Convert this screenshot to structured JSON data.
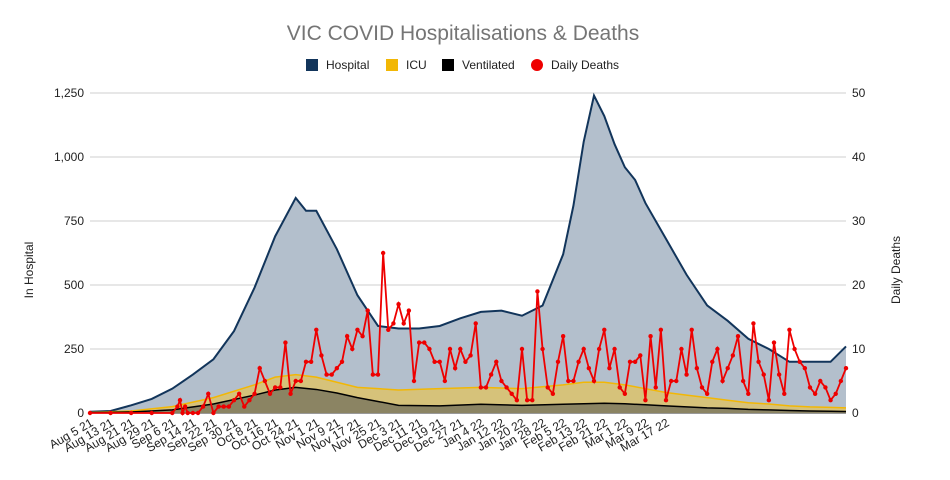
{
  "chart_data": {
    "type": "area",
    "title": "VIC COVID Hospitalisations & Deaths",
    "ylabel_left": "In Hospital",
    "ylabel_right": "Daily Deaths",
    "ylim_left": [
      0,
      1250
    ],
    "ylim_right": [
      0,
      50
    ],
    "yticks_left": [
      "0",
      "250",
      "500",
      "750",
      "1,000",
      "1,250"
    ],
    "yticks_right": [
      "0",
      "10",
      "20",
      "30",
      "40",
      "50"
    ],
    "grid": true,
    "legend_position": "top",
    "x_tick_labels": [
      "Aug 5 21",
      "Aug 13 21",
      "Aug 21 21",
      "Aug 29 21",
      "Sep 6 21",
      "Sep 14 21",
      "Sep 22 21",
      "Sep 30 21",
      "Oct 8 21",
      "Oct 16 21",
      "Oct 24 21",
      "Nov 1 21",
      "Nov 9 21",
      "Nov 17 21",
      "Nov 25 21",
      "Dec 3 21",
      "Dec 11 21",
      "Dec 19 21",
      "Dec 27 21",
      "Jan 4 22",
      "Jan 12 22",
      "Jan 20 22",
      "Jan 28 22",
      "Feb 5 22",
      "Feb 13 22",
      "Feb 21 22",
      "Mar 1 22",
      "Mar 9 22",
      "Mar 17 22"
    ],
    "series": [
      {
        "name": "Hospital",
        "color": "#12355b",
        "fill": "#b3bfcc",
        "axis": "left",
        "points": [
          [
            0,
            5
          ],
          [
            8,
            8
          ],
          [
            16,
            30
          ],
          [
            24,
            55
          ],
          [
            32,
            95
          ],
          [
            40,
            150
          ],
          [
            48,
            210
          ],
          [
            56,
            320
          ],
          [
            64,
            490
          ],
          [
            72,
            690
          ],
          [
            80,
            840
          ],
          [
            84,
            790
          ],
          [
            88,
            790
          ],
          [
            96,
            640
          ],
          [
            104,
            460
          ],
          [
            112,
            340
          ],
          [
            120,
            330
          ],
          [
            128,
            330
          ],
          [
            136,
            340
          ],
          [
            144,
            370
          ],
          [
            152,
            395
          ],
          [
            160,
            400
          ],
          [
            168,
            380
          ],
          [
            176,
            420
          ],
          [
            184,
            620
          ],
          [
            188,
            810
          ],
          [
            192,
            1060
          ],
          [
            196,
            1240
          ],
          [
            200,
            1160
          ],
          [
            204,
            1050
          ],
          [
            208,
            960
          ],
          [
            212,
            910
          ],
          [
            216,
            820
          ],
          [
            224,
            680
          ],
          [
            232,
            540
          ],
          [
            240,
            420
          ],
          [
            248,
            360
          ],
          [
            256,
            290
          ],
          [
            264,
            250
          ],
          [
            272,
            200
          ],
          [
            280,
            200
          ],
          [
            288,
            200
          ],
          [
            294,
            260
          ]
        ]
      },
      {
        "name": "ICU",
        "color": "#f2b705",
        "fill": "#d6c27a",
        "axis": "left",
        "points": [
          [
            0,
            2
          ],
          [
            16,
            8
          ],
          [
            32,
            25
          ],
          [
            48,
            60
          ],
          [
            64,
            110
          ],
          [
            72,
            140
          ],
          [
            80,
            150
          ],
          [
            88,
            140
          ],
          [
            96,
            120
          ],
          [
            104,
            100
          ],
          [
            112,
            95
          ],
          [
            120,
            90
          ],
          [
            136,
            95
          ],
          [
            152,
            100
          ],
          [
            168,
            95
          ],
          [
            184,
            110
          ],
          [
            192,
            120
          ],
          [
            200,
            120
          ],
          [
            208,
            110
          ],
          [
            216,
            95
          ],
          [
            224,
            80
          ],
          [
            232,
            70
          ],
          [
            240,
            60
          ],
          [
            248,
            50
          ],
          [
            256,
            40
          ],
          [
            264,
            35
          ],
          [
            272,
            28
          ],
          [
            280,
            24
          ],
          [
            288,
            22
          ],
          [
            294,
            20
          ]
        ]
      },
      {
        "name": "Ventilated",
        "color": "#000000",
        "fill": "#8b8463",
        "axis": "left",
        "points": [
          [
            0,
            1
          ],
          [
            16,
            4
          ],
          [
            32,
            12
          ],
          [
            48,
            35
          ],
          [
            64,
            70
          ],
          [
            72,
            90
          ],
          [
            80,
            100
          ],
          [
            88,
            92
          ],
          [
            96,
            78
          ],
          [
            104,
            60
          ],
          [
            112,
            45
          ],
          [
            120,
            30
          ],
          [
            136,
            28
          ],
          [
            152,
            34
          ],
          [
            168,
            30
          ],
          [
            184,
            34
          ],
          [
            192,
            36
          ],
          [
            200,
            38
          ],
          [
            208,
            36
          ],
          [
            216,
            32
          ],
          [
            224,
            28
          ],
          [
            232,
            24
          ],
          [
            240,
            20
          ],
          [
            248,
            18
          ],
          [
            256,
            14
          ],
          [
            264,
            12
          ],
          [
            272,
            10
          ],
          [
            280,
            8
          ],
          [
            288,
            7
          ],
          [
            294,
            6
          ]
        ]
      },
      {
        "name": "Daily Deaths",
        "color": "#ee0000",
        "fill": "none",
        "axis": "right",
        "points": [
          [
            0,
            0
          ],
          [
            8,
            0
          ],
          [
            16,
            0
          ],
          [
            24,
            0
          ],
          [
            32,
            0
          ],
          [
            34,
            1
          ],
          [
            35,
            2
          ],
          [
            36,
            0
          ],
          [
            37,
            1
          ],
          [
            38,
            0
          ],
          [
            40,
            0
          ],
          [
            42,
            0
          ],
          [
            44,
            1
          ],
          [
            46,
            3
          ],
          [
            48,
            0
          ],
          [
            50,
            1
          ],
          [
            52,
            1
          ],
          [
            54,
            1
          ],
          [
            56,
            2
          ],
          [
            58,
            3
          ],
          [
            60,
            1
          ],
          [
            62,
            2
          ],
          [
            64,
            3
          ],
          [
            66,
            7
          ],
          [
            68,
            5
          ],
          [
            70,
            3
          ],
          [
            72,
            4
          ],
          [
            74,
            4
          ],
          [
            76,
            11
          ],
          [
            78,
            3
          ],
          [
            80,
            5
          ],
          [
            82,
            5
          ],
          [
            84,
            8
          ],
          [
            86,
            8
          ],
          [
            88,
            13
          ],
          [
            90,
            9
          ],
          [
            92,
            6
          ],
          [
            94,
            6
          ],
          [
            96,
            7
          ],
          [
            98,
            8
          ],
          [
            100,
            12
          ],
          [
            102,
            10
          ],
          [
            104,
            13
          ],
          [
            106,
            12
          ],
          [
            108,
            16
          ],
          [
            110,
            6
          ],
          [
            112,
            6
          ],
          [
            114,
            25
          ],
          [
            116,
            13
          ],
          [
            118,
            14
          ],
          [
            120,
            17
          ],
          [
            122,
            14
          ],
          [
            124,
            16
          ],
          [
            126,
            5
          ],
          [
            128,
            11
          ],
          [
            130,
            11
          ],
          [
            132,
            10
          ],
          [
            134,
            8
          ],
          [
            136,
            8
          ],
          [
            138,
            5
          ],
          [
            140,
            10
          ],
          [
            142,
            7
          ],
          [
            144,
            10
          ],
          [
            146,
            8
          ],
          [
            148,
            9
          ],
          [
            150,
            14
          ],
          [
            152,
            4
          ],
          [
            154,
            4
          ],
          [
            156,
            6
          ],
          [
            158,
            8
          ],
          [
            160,
            5
          ],
          [
            162,
            4
          ],
          [
            164,
            3
          ],
          [
            166,
            2
          ],
          [
            168,
            10
          ],
          [
            170,
            2
          ],
          [
            172,
            2
          ],
          [
            174,
            19
          ],
          [
            176,
            10
          ],
          [
            178,
            4
          ],
          [
            180,
            3
          ],
          [
            182,
            8
          ],
          [
            184,
            12
          ],
          [
            186,
            5
          ],
          [
            188,
            5
          ],
          [
            190,
            8
          ],
          [
            192,
            10
          ],
          [
            194,
            7
          ],
          [
            196,
            5
          ],
          [
            198,
            10
          ],
          [
            200,
            13
          ],
          [
            202,
            7
          ],
          [
            204,
            10
          ],
          [
            206,
            4
          ],
          [
            208,
            3
          ],
          [
            210,
            8
          ],
          [
            212,
            8
          ],
          [
            214,
            9
          ],
          [
            216,
            2
          ],
          [
            218,
            12
          ],
          [
            220,
            4
          ],
          [
            222,
            13
          ],
          [
            224,
            2
          ],
          [
            226,
            5
          ],
          [
            228,
            5
          ],
          [
            230,
            10
          ],
          [
            232,
            6
          ],
          [
            234,
            13
          ],
          [
            236,
            7
          ],
          [
            238,
            4
          ],
          [
            240,
            3
          ],
          [
            242,
            8
          ],
          [
            244,
            10
          ],
          [
            246,
            5
          ],
          [
            248,
            7
          ],
          [
            250,
            9
          ],
          [
            252,
            12
          ],
          [
            254,
            5
          ],
          [
            256,
            3
          ],
          [
            258,
            14
          ],
          [
            260,
            8
          ],
          [
            262,
            6
          ],
          [
            264,
            2
          ],
          [
            266,
            11
          ],
          [
            268,
            6
          ],
          [
            270,
            3
          ],
          [
            272,
            13
          ],
          [
            274,
            10
          ],
          [
            276,
            8
          ],
          [
            278,
            7
          ],
          [
            280,
            4
          ],
          [
            282,
            3
          ],
          [
            284,
            5
          ],
          [
            286,
            4
          ],
          [
            288,
            2
          ],
          [
            290,
            3
          ],
          [
            292,
            5
          ],
          [
            294,
            7
          ]
        ]
      }
    ]
  }
}
